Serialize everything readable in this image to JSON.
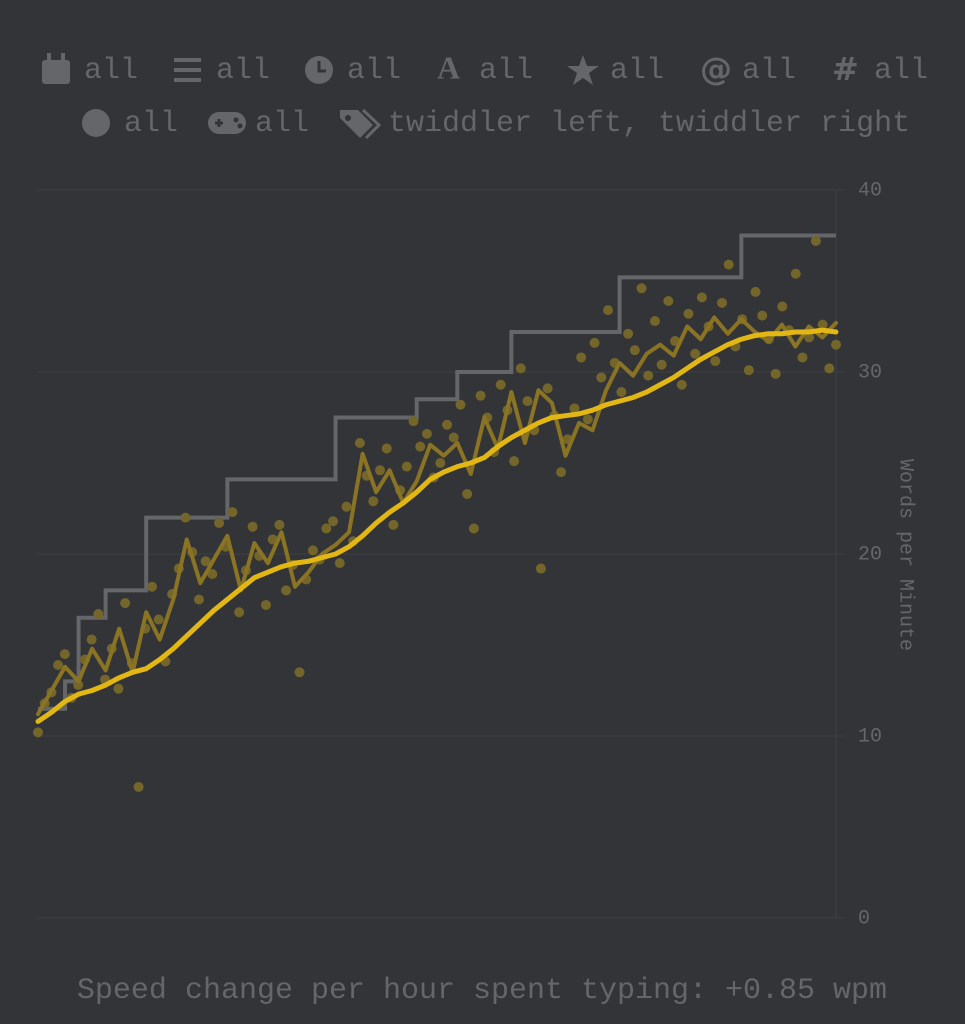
{
  "filters": [
    "all",
    "all",
    "all",
    "all",
    "all",
    "all",
    "all",
    "all",
    "all",
    "twiddler left, twiddler right"
  ],
  "footer": "Speed change per hour spent typing: +0.85 wpm",
  "chart_data": {
    "type": "line",
    "ylabel": "Words per Minute",
    "ylim": [
      0,
      40
    ],
    "yticks": [
      0,
      10,
      20,
      30,
      40
    ],
    "grid": true,
    "series": [
      {
        "kind": "step",
        "color": "#646669",
        "values": [
          11.5,
          11.5,
          13.0,
          16.5,
          16.5,
          18.0,
          18.0,
          18.0,
          22.0,
          22.0,
          22.0,
          22.0,
          22.0,
          22.0,
          24.1,
          24.1,
          24.1,
          24.1,
          24.1,
          24.1,
          24.1,
          24.1,
          27.5,
          27.5,
          27.5,
          27.5,
          27.5,
          27.5,
          28.5,
          28.5,
          28.5,
          30.0,
          30.0,
          30.0,
          30.0,
          32.2,
          32.2,
          32.2,
          32.2,
          32.2,
          32.2,
          32.2,
          32.2,
          35.2,
          35.2,
          35.2,
          35.2,
          35.2,
          35.2,
          35.2,
          35.2,
          35.2,
          37.5,
          37.5,
          37.5,
          37.5,
          37.5,
          37.5,
          37.5,
          37.5
        ]
      },
      {
        "kind": "scatter",
        "color": "#74652a",
        "values": [
          10.2,
          11.8,
          12.4,
          13.9,
          14.5,
          12.1,
          12.8,
          14.2,
          15.3,
          16.7,
          13.1,
          14.8,
          12.6,
          17.3,
          14.0,
          7.2,
          15.9,
          18.2,
          16.4,
          14.1,
          17.8,
          19.2,
          22.0,
          20.1,
          17.5,
          19.6,
          18.9,
          21.7,
          20.4,
          22.3,
          16.8,
          19.1,
          21.5,
          19.9,
          17.2,
          20.8,
          21.6,
          18.0,
          19.4,
          13.5,
          18.6,
          20.2,
          19.7,
          21.4,
          21.8,
          19.5,
          22.6,
          20.7,
          26.1,
          24.3,
          22.9,
          24.6,
          25.8,
          21.6,
          23.5,
          24.8,
          27.3,
          25.9,
          26.6,
          24.2,
          25.0,
          27.1,
          26.4,
          28.2,
          23.3,
          21.4,
          28.7,
          27.5,
          25.6,
          29.3,
          27.9,
          25.1,
          30.2,
          28.4,
          26.8,
          19.2,
          29.1,
          27.6,
          24.5,
          26.3,
          28.0,
          30.8,
          27.4,
          31.6,
          29.7,
          33.4,
          30.5,
          28.9,
          32.1,
          31.2,
          34.6,
          29.8,
          32.8,
          30.4,
          33.9,
          31.7,
          29.3,
          33.2,
          31.0,
          34.1,
          32.5,
          30.6,
          33.8,
          35.9,
          31.4,
          32.9,
          30.1,
          34.4,
          33.1,
          31.8,
          29.9,
          33.6,
          32.3,
          35.4,
          30.8,
          31.9,
          37.2,
          32.6,
          30.2,
          31.5
        ]
      },
      {
        "kind": "line",
        "color": "#8a7424",
        "width": 4,
        "values": [
          11.2,
          12.5,
          13.8,
          13.0,
          14.8,
          13.6,
          15.9,
          13.5,
          16.8,
          15.3,
          17.5,
          20.8,
          18.4,
          19.7,
          21.0,
          18.0,
          20.6,
          19.5,
          21.2,
          18.2,
          19.0,
          20.0,
          20.5,
          21.2,
          25.5,
          23.4,
          24.6,
          22.8,
          24.0,
          26.0,
          25.4,
          26.1,
          24.4,
          27.5,
          25.8,
          28.9,
          26.1,
          29.0,
          28.3,
          25.4,
          27.2,
          26.8,
          29.0,
          30.5,
          29.8,
          31.0,
          31.5,
          30.9,
          32.5,
          31.8,
          33.0,
          32.1,
          32.9,
          32.2,
          31.7,
          32.6,
          31.4,
          32.5,
          31.9,
          32.7
        ]
      },
      {
        "kind": "line",
        "color": "#e2b714",
        "width": 5,
        "values": [
          10.8,
          11.3,
          11.9,
          12.3,
          12.5,
          12.8,
          13.2,
          13.5,
          13.7,
          14.2,
          14.8,
          15.5,
          16.2,
          16.9,
          17.5,
          18.1,
          18.7,
          19.0,
          19.3,
          19.5,
          19.6,
          19.8,
          20.0,
          20.4,
          21.0,
          21.7,
          22.3,
          22.8,
          23.4,
          24.1,
          24.5,
          24.8,
          25.0,
          25.3,
          25.9,
          26.4,
          26.8,
          27.2,
          27.5,
          27.6,
          27.7,
          27.9,
          28.2,
          28.4,
          28.6,
          28.9,
          29.3,
          29.7,
          30.2,
          30.7,
          31.1,
          31.5,
          31.8,
          32.0,
          32.1,
          32.1,
          32.2,
          32.2,
          32.3,
          32.2
        ]
      }
    ]
  }
}
